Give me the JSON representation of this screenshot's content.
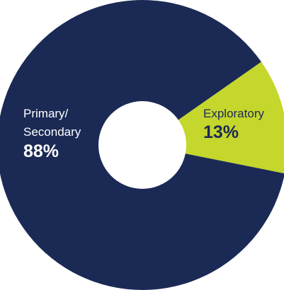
{
  "chart_data": {
    "type": "pie",
    "style": "donut",
    "slices": [
      {
        "label_lines": [
          "Primary/",
          "Secondary"
        ],
        "value_text": "88%",
        "value": 88,
        "color": "#1b2a55",
        "text_color": "#ffffff"
      },
      {
        "label_lines": [
          "Exploratory"
        ],
        "value_text": "13%",
        "value": 13,
        "color": "#c5d62c",
        "text_color": "#1b2a55"
      }
    ],
    "hole_color": "#ffffff"
  }
}
